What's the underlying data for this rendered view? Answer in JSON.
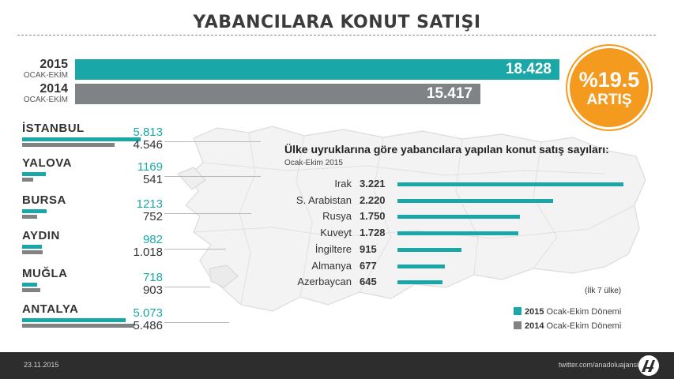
{
  "title": "YABANCILARA KONUT SATIŞI",
  "colors": {
    "accent": "#1aa7a8",
    "gray": "#7f8385",
    "badge": "#f49a1e",
    "footer": "#2d2d2d"
  },
  "badge": {
    "percent": "%19.5",
    "label": "ARTIŞ"
  },
  "chart_data": [
    {
      "type": "bar",
      "orientation": "horizontal",
      "categories": [
        "2015",
        "2014"
      ],
      "period_labels": [
        "OCAK-EKİM",
        "OCAK-EKİM"
      ],
      "values": [
        18428,
        15417
      ],
      "value_labels": [
        "18.428",
        "15.417"
      ]
    },
    {
      "type": "bar",
      "orientation": "horizontal",
      "categories": [
        "İSTANBUL",
        "YALOVA",
        "BURSA",
        "AYDIN",
        "MUĞLA",
        "ANTALYA"
      ],
      "series": [
        {
          "name": "2015 Ocak-Ekim Dönemi",
          "values": [
            5813,
            1169,
            1213,
            982,
            718,
            5073
          ],
          "value_labels": [
            "5.813",
            "1169",
            "1213",
            "982",
            "718",
            "5.073"
          ]
        },
        {
          "name": "2014 Ocak-Ekim Dönemi",
          "values": [
            4546,
            541,
            752,
            1018,
            903,
            5486
          ],
          "value_labels": [
            "4.546",
            "541",
            "752",
            "1.018",
            "903",
            "5.486"
          ]
        }
      ]
    },
    {
      "type": "bar",
      "orientation": "horizontal",
      "title": "Ülke uyruklarına göre yabancılara yapılan konut satış sayıları:",
      "subtitle": "Ocak-Ekim 2015",
      "categories": [
        "Irak",
        "S. Arabistan",
        "Rusya",
        "Kuveyt",
        "İngiltere",
        "Almanya",
        "Azerbaycan"
      ],
      "values": [
        3221,
        2220,
        1750,
        1728,
        915,
        677,
        645
      ],
      "value_labels": [
        "3.221",
        "2.220",
        "1.750",
        "1.728",
        "915",
        "677",
        "645"
      ],
      "note": "(İlk 7 ülke)"
    }
  ],
  "legend": [
    {
      "year": "2015",
      "text": "Ocak-Ekim Dönemi",
      "color": "#1aa7a8"
    },
    {
      "year": "2014",
      "text": "Ocak-Ekim Dönemi",
      "color": "#7f8385"
    }
  ],
  "footer": {
    "date": "23.11.2015",
    "twitter": "twitter.com/anadoluajansi",
    "logo_icon": "aa-logo-icon"
  }
}
